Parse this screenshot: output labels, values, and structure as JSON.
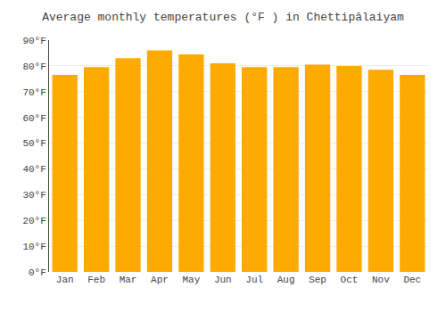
{
  "chart_data": {
    "type": "bar",
    "title": "Average monthly temperatures (°F ) in Chettipālaiyam",
    "categories": [
      "Jan",
      "Feb",
      "Mar",
      "Apr",
      "May",
      "Jun",
      "Jul",
      "Aug",
      "Sep",
      "Oct",
      "Nov",
      "Dec"
    ],
    "values": [
      76.5,
      79.5,
      83,
      86,
      84.5,
      81,
      79.5,
      79.5,
      80.5,
      80,
      78.5,
      76.5
    ],
    "color": "#FFAA00",
    "ylim": [
      0,
      90
    ],
    "yticks": [
      {
        "value": 0,
        "label": "0°F"
      },
      {
        "value": 10,
        "label": "10°F"
      },
      {
        "value": 20,
        "label": "20°F"
      },
      {
        "value": 30,
        "label": "30°F"
      },
      {
        "value": 40,
        "label": "40°F"
      },
      {
        "value": 50,
        "label": "50°F"
      },
      {
        "value": 60,
        "label": "60°F"
      },
      {
        "value": 70,
        "label": "70°F"
      },
      {
        "value": 80,
        "label": "80°F"
      },
      {
        "value": 90,
        "label": "90°F"
      }
    ],
    "grid": true
  }
}
